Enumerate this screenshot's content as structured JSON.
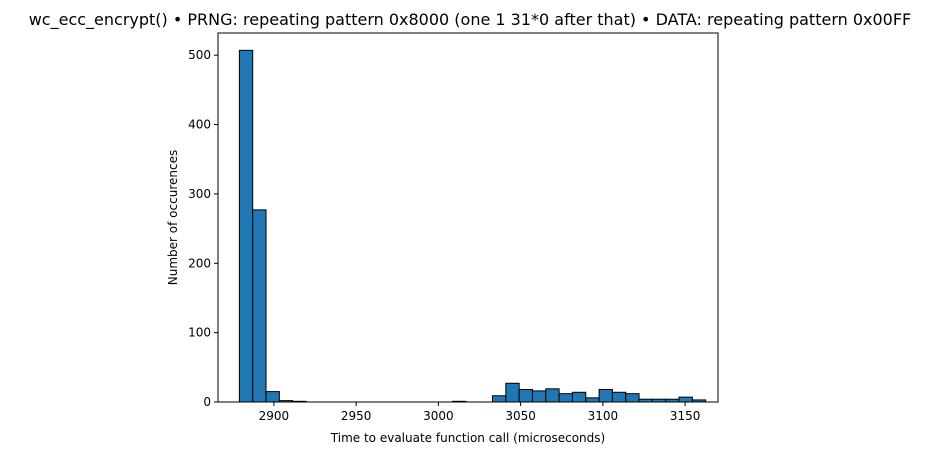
{
  "chart_data": {
    "type": "bar",
    "title": "wc_ecc_encrypt() • PRNG: repeating pattern 0x8000 (one 1 31*0 after that) • DATA: repeating pattern 0x00FF",
    "xlabel": "Time to evaluate function call (microseconds)",
    "ylabel": "Number of occurences",
    "xlim": [
      2866,
      3170
    ],
    "ylim": [
      0,
      532
    ],
    "xticks": [
      2900,
      2950,
      3000,
      3050,
      3100,
      3150
    ],
    "yticks": [
      0,
      100,
      200,
      300,
      400,
      500
    ],
    "bin_edges": [
      2879,
      2887.1,
      2895.2,
      2903.3,
      2911.4,
      2919.5,
      2927.6,
      2935.7,
      2943.8,
      2951.9,
      2960,
      2968.1,
      2976.2,
      2984.3,
      2992.4,
      3000.5,
      3008.6,
      3016.7,
      3024.8,
      3032.9,
      3041,
      3049.1,
      3057.2,
      3065.3,
      3073.4,
      3081.5,
      3089.6,
      3097.7,
      3105.8,
      3113.9,
      3122,
      3130.1,
      3138.2,
      3146.3,
      3154.4,
      3162.5
    ],
    "values": [
      507,
      277,
      15,
      2,
      1,
      0,
      0,
      0,
      0,
      0,
      0,
      0,
      0,
      0,
      0,
      0,
      1,
      0,
      0,
      9,
      27,
      18,
      16,
      19,
      12,
      14,
      6,
      18,
      14,
      12,
      4,
      4,
      4,
      7,
      3
    ],
    "color": "#1f77b4",
    "edge_color": "#000000",
    "grid": false
  }
}
